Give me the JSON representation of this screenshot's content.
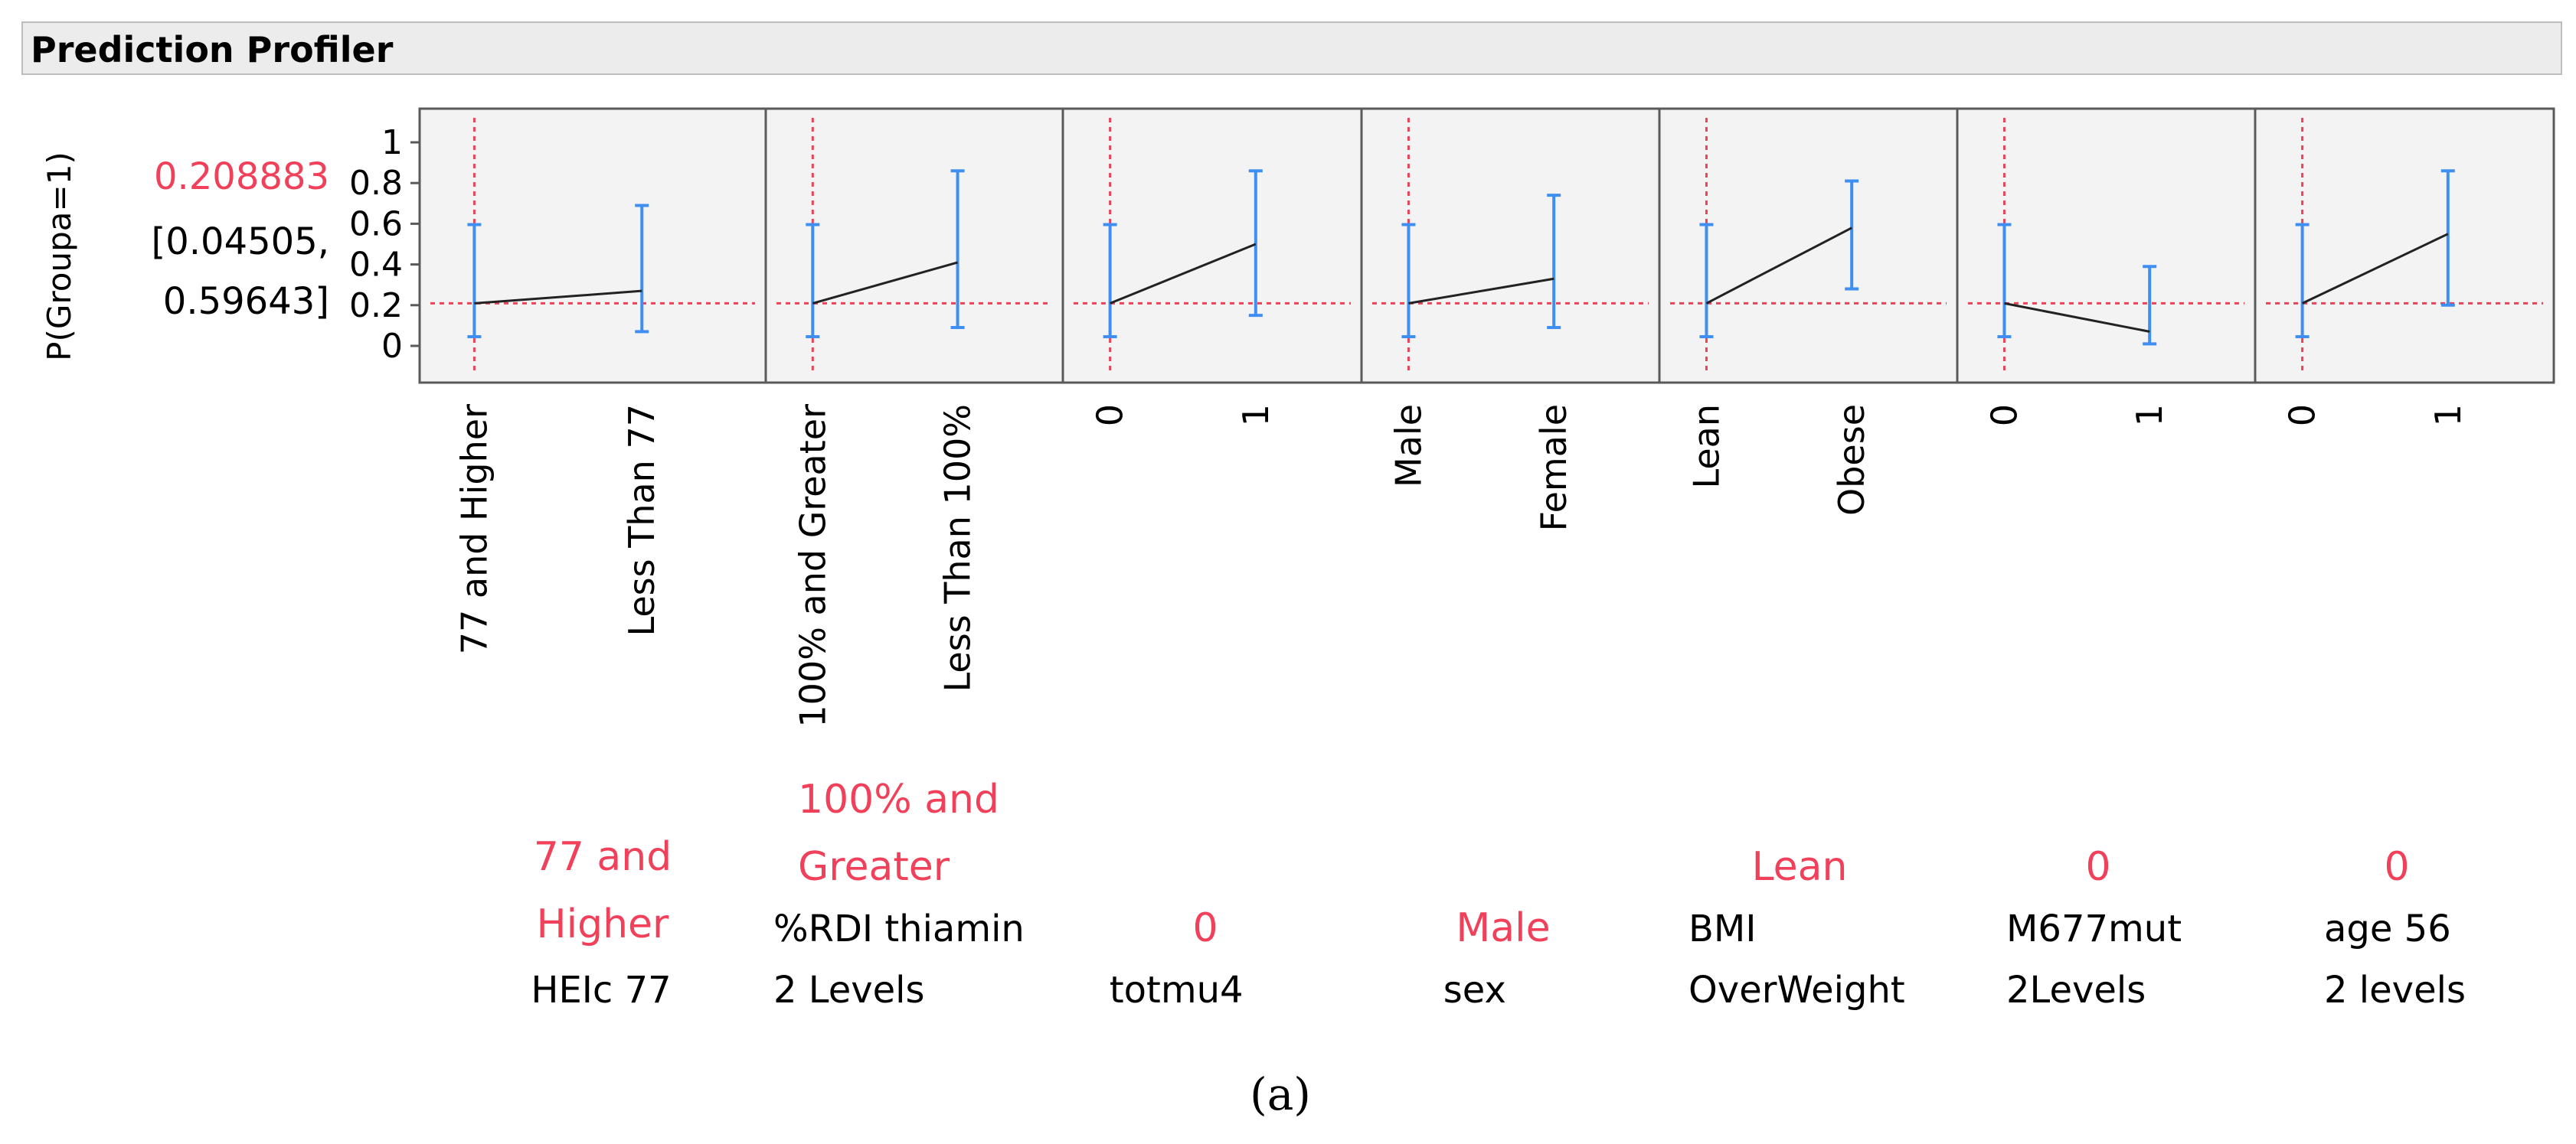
{
  "header": {
    "title": "Prediction Profiler"
  },
  "figure_label": "(a)",
  "colors": {
    "panel_bg": "#f3f3f3",
    "frame": "#5a5a5a",
    "ref_line": "#e8445a",
    "error_bar": "#3f8ef2",
    "line": "#222222",
    "highlight_text": "#f0405a",
    "text": "#000000"
  },
  "chart_data": {
    "type": "line",
    "title": "Prediction Profiler",
    "ylabel": "P(Groupa=1)",
    "ylim": [
      -0.15,
      1.12
    ],
    "yticks": [
      "1",
      "0.8",
      "0.6",
      "0.4",
      "0.2",
      "0"
    ],
    "ytick_values": [
      1,
      0.8,
      0.6,
      0.4,
      0.2,
      0
    ],
    "prediction": {
      "value": "0.208883",
      "ci_line1": "[0.04505,",
      "ci_line2": "0.59643]"
    },
    "reference_y": 0.208883,
    "factors": [
      {
        "name": "HEIc 77",
        "current": "77 and Higher",
        "current_lines": [
          "77 and",
          "Higher"
        ],
        "name_lines": [
          "HEIc 77"
        ],
        "levels": [
          "77 and Higher",
          "Less Than 77"
        ],
        "values": [
          0.209,
          0.27
        ],
        "lower": [
          0.045,
          0.07
        ],
        "upper": [
          0.596,
          0.69
        ]
      },
      {
        "name": "%RDI thiamin 2 Levels",
        "current": "100% and Greater",
        "current_lines": [
          "100% and",
          "Greater"
        ],
        "name_lines": [
          "%RDI thiamin",
          "2 Levels"
        ],
        "levels": [
          "100% and Greater",
          "Less Than 100%"
        ],
        "values": [
          0.209,
          0.41
        ],
        "lower": [
          0.045,
          0.09
        ],
        "upper": [
          0.596,
          0.86
        ]
      },
      {
        "name": "totmu4",
        "current": "0",
        "current_lines": [
          "0"
        ],
        "name_lines": [
          "totmu4"
        ],
        "levels": [
          "0",
          "1"
        ],
        "values": [
          0.209,
          0.5
        ],
        "lower": [
          0.045,
          0.15
        ],
        "upper": [
          0.596,
          0.86
        ]
      },
      {
        "name": "sex",
        "current": "Male",
        "current_lines": [
          "Male"
        ],
        "name_lines": [
          "sex"
        ],
        "levels": [
          "Male",
          "Female"
        ],
        "values": [
          0.209,
          0.33
        ],
        "lower": [
          0.045,
          0.09
        ],
        "upper": [
          0.596,
          0.74
        ]
      },
      {
        "name": "BMI OverWeight",
        "current": "Lean",
        "current_lines": [
          "Lean"
        ],
        "name_lines": [
          "BMI",
          "OverWeight"
        ],
        "levels": [
          "Lean",
          "Obese"
        ],
        "values": [
          0.209,
          0.58
        ],
        "lower": [
          0.045,
          0.28
        ],
        "upper": [
          0.596,
          0.81
        ]
      },
      {
        "name": "M677mut 2Levels",
        "current": "0",
        "current_lines": [
          "0"
        ],
        "name_lines": [
          "M677mut",
          "2Levels"
        ],
        "levels": [
          "0",
          "1"
        ],
        "values": [
          0.209,
          0.07
        ],
        "lower": [
          0.045,
          0.01
        ],
        "upper": [
          0.596,
          0.39
        ]
      },
      {
        "name": "age 56 2 levels",
        "current": "0",
        "current_lines": [
          "0"
        ],
        "name_lines": [
          "age 56",
          "2 levels"
        ],
        "levels": [
          "0",
          "1"
        ],
        "values": [
          0.209,
          0.55
        ],
        "lower": [
          0.045,
          0.2
        ],
        "upper": [
          0.596,
          0.86
        ]
      }
    ]
  }
}
